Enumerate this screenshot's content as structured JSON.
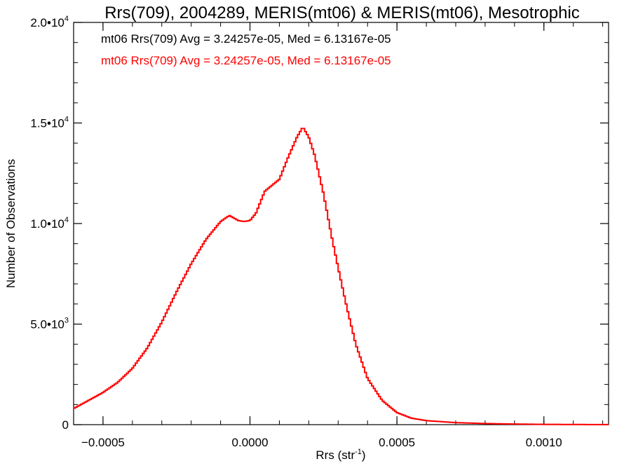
{
  "chart_data": {
    "type": "line",
    "title": "Rrs(709), 2004289, MERIS(mt06) & MERIS(mt06), Mesotrophic",
    "xlabel": {
      "base": "Rrs (str",
      "sup": "-1",
      "tail": ")"
    },
    "ylabel": "Number of Observations",
    "xlim": [
      -0.0006,
      0.00122
    ],
    "ylim": [
      0,
      20000
    ],
    "x_ticks": [
      {
        "value": -0.0005,
        "label": "-0.0005"
      },
      {
        "value": 0.0,
        "label": "0.0000"
      },
      {
        "value": 0.0005,
        "label": "0.0005"
      },
      {
        "value": 0.001,
        "label": "0.0010"
      }
    ],
    "y_ticks": [
      {
        "value": 0,
        "mant": "0",
        "exp": ""
      },
      {
        "value": 5000,
        "mant": "5.0•10",
        "exp": "3"
      },
      {
        "value": 10000,
        "mant": "1.0•10",
        "exp": "4"
      },
      {
        "value": 15000,
        "mant": "1.5•10",
        "exp": "4"
      },
      {
        "value": 20000,
        "mant": "2.0•10",
        "exp": "4"
      }
    ],
    "legend": [
      {
        "text": "mt06 Rrs(709) Avg = 3.24257e-05, Med = 6.13167e-05",
        "color": "#000000"
      },
      {
        "text": "mt06 Rrs(709) Avg = 3.24257e-05, Med = 6.13167e-05",
        "color": "#ff0000"
      }
    ],
    "series": [
      {
        "color": "#ff0000",
        "points": [
          [
            -0.0006,
            800
          ],
          [
            -0.00055,
            1200
          ],
          [
            -0.0005,
            1600
          ],
          [
            -0.00045,
            2100
          ],
          [
            -0.0004,
            2800
          ],
          [
            -0.00035,
            3800
          ],
          [
            -0.0003,
            5100
          ],
          [
            -0.00025,
            6600
          ],
          [
            -0.0002,
            8000
          ],
          [
            -0.00015,
            9200
          ],
          [
            -0.0001,
            10100
          ],
          [
            -7e-05,
            10400
          ],
          [
            -4e-05,
            10150
          ],
          [
            -2e-05,
            10100
          ],
          [
            0.0,
            10150
          ],
          [
            2e-05,
            10500
          ],
          [
            5e-05,
            11600
          ],
          [
            0.0001,
            12200
          ],
          [
            0.00013,
            13300
          ],
          [
            0.00016,
            14300
          ],
          [
            0.00018,
            14800
          ],
          [
            0.0002,
            14300
          ],
          [
            0.00022,
            13400
          ],
          [
            0.00025,
            11500
          ],
          [
            0.00028,
            9200
          ],
          [
            0.0003,
            7800
          ],
          [
            0.00033,
            5800
          ],
          [
            0.00036,
            4000
          ],
          [
            0.0004,
            2300
          ],
          [
            0.00045,
            1200
          ],
          [
            0.0005,
            600
          ],
          [
            0.00055,
            320
          ],
          [
            0.0006,
            200
          ],
          [
            0.0007,
            100
          ],
          [
            0.0008,
            55
          ],
          [
            0.0009,
            30
          ],
          [
            0.001,
            15
          ],
          [
            0.0011,
            8
          ],
          [
            0.0012,
            4
          ]
        ]
      }
    ]
  }
}
